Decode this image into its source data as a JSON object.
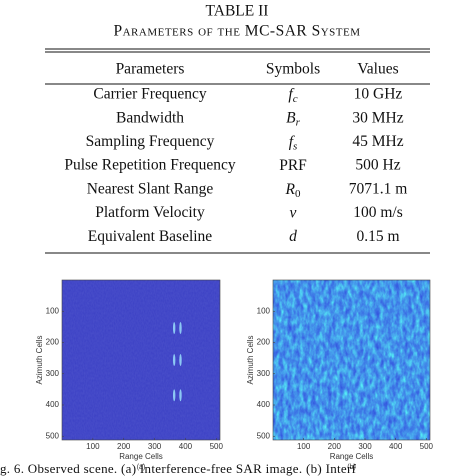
{
  "table": {
    "label": "TABLE II",
    "title": "Parameters of the MC-SAR System",
    "header": [
      "Parameters",
      "Symbols",
      "Values"
    ],
    "rows": [
      {
        "parameter": "Carrier Frequency",
        "symbol": {
          "base": "f",
          "sub": "c"
        },
        "value": "10 GHz"
      },
      {
        "parameter": "Bandwidth",
        "symbol": {
          "base": "B",
          "sub": "r"
        },
        "value": "30 MHz"
      },
      {
        "parameter": "Sampling Frequency",
        "symbol": {
          "base": "f",
          "sub": "s"
        },
        "value": "45 MHz"
      },
      {
        "parameter": "Pulse Repetition Frequency",
        "symbol": {
          "base": "PRF"
        },
        "value": "500 Hz"
      },
      {
        "parameter": "Nearest Slant Range",
        "symbol": {
          "base": "R",
          "sub": "0"
        },
        "value": "7071.1 m"
      },
      {
        "parameter": "Platform Velocity",
        "symbol": {
          "base": "v"
        },
        "value": "100 m/s"
      },
      {
        "parameter": "Equivalent Baseline",
        "symbol": {
          "base": "d"
        },
        "value": "0.15 m"
      }
    ]
  },
  "figure": {
    "panels": [
      {
        "label": "(a)",
        "xlabel": "Range Cells",
        "ylabel": "Azimuth Cells",
        "xlim": [
          0,
          512
        ],
        "ylim": [
          0,
          512
        ],
        "xticks": [
          100,
          200,
          300,
          400,
          500
        ],
        "yticks": [
          100,
          200,
          300,
          400,
          500
        ]
      },
      {
        "label": "(b)",
        "xlabel": "Range Cells",
        "ylabel": "Azimuth Cells",
        "xlim": [
          0,
          512
        ],
        "ylim": [
          0,
          512
        ],
        "xticks": [
          100,
          200,
          300,
          400,
          500
        ],
        "yticks": [
          100,
          200,
          300,
          400,
          500
        ]
      }
    ],
    "caption": "g. 6.   Observed scene. (a) Interference-free SAR image. (b) Interf"
  }
}
